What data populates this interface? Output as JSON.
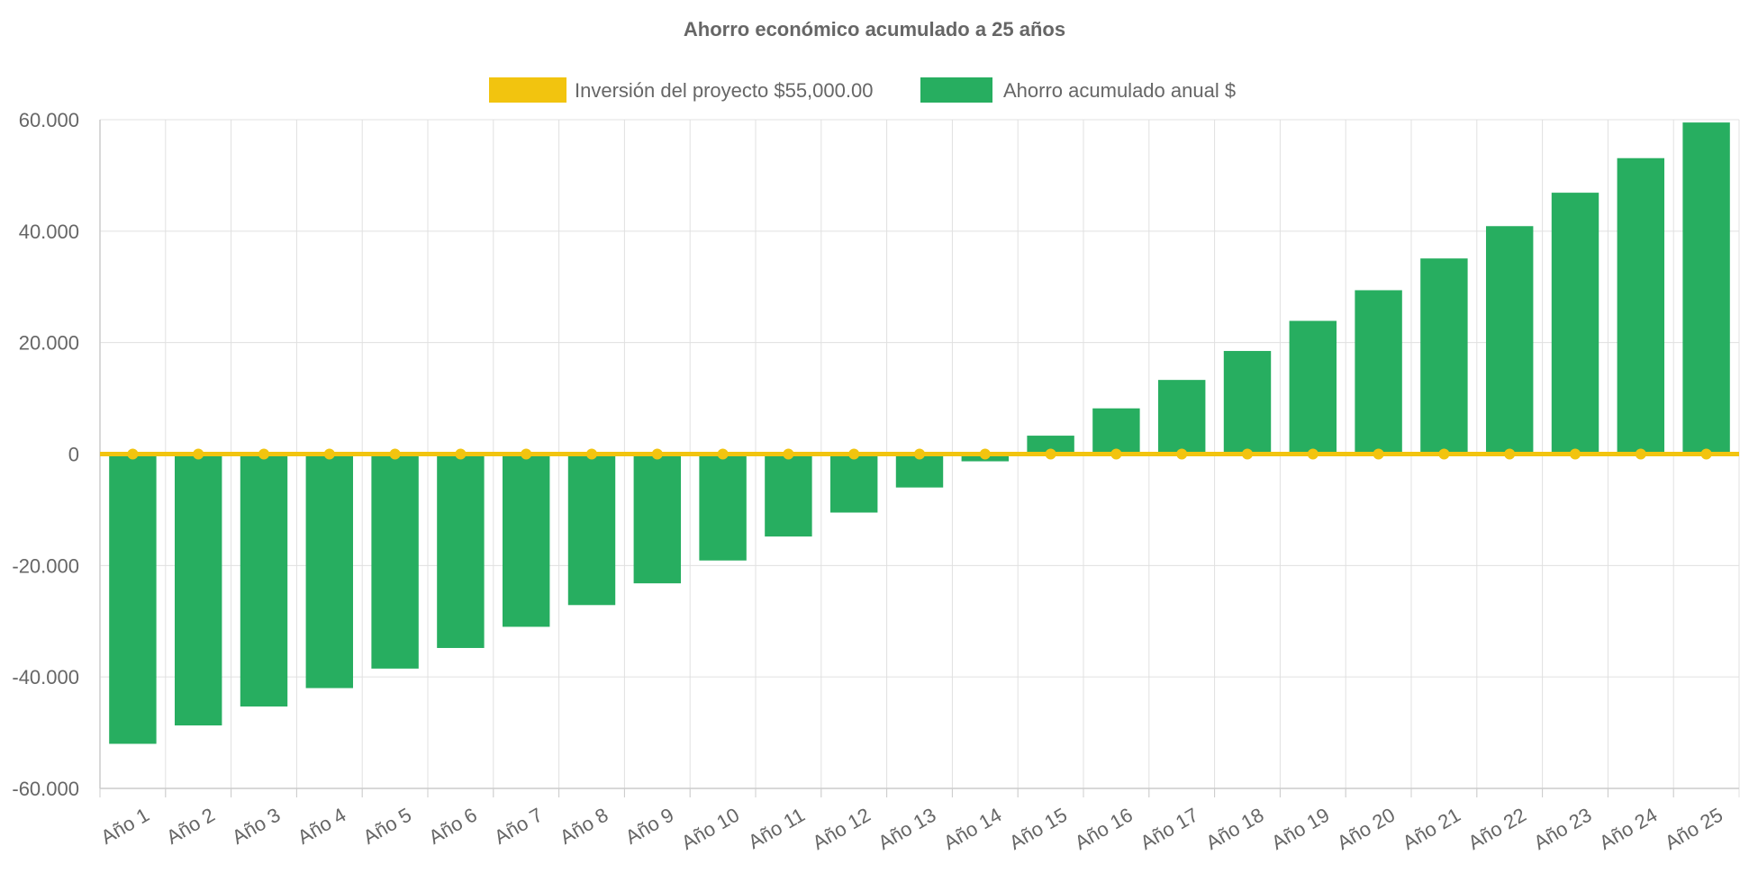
{
  "chart_data": {
    "type": "bar",
    "title": "Ahorro económico acumulado a 25 años",
    "categories": [
      "Año 1",
      "Año 2",
      "Año 3",
      "Año 4",
      "Año 5",
      "Año 6",
      "Año 7",
      "Año 8",
      "Año 9",
      "Año 10",
      "Año 11",
      "Año 12",
      "Año 13",
      "Año 14",
      "Año 15",
      "Año 16",
      "Año 17",
      "Año 18",
      "Año 19",
      "Año 20",
      "Año 21",
      "Año 22",
      "Año 23",
      "Año 24",
      "Año 25"
    ],
    "series": [
      {
        "name": "Inversión del proyecto $55,000.00",
        "type": "line",
        "color": "#f2c40f",
        "values": [
          0,
          0,
          0,
          0,
          0,
          0,
          0,
          0,
          0,
          0,
          0,
          0,
          0,
          0,
          0,
          0,
          0,
          0,
          0,
          0,
          0,
          0,
          0,
          0,
          0
        ]
      },
      {
        "name": "Ahorro acumulado anual $",
        "type": "bar",
        "color": "#27ae60",
        "values": [
          -52000,
          -48700,
          -45300,
          -42000,
          -38500,
          -34800,
          -31000,
          -27100,
          -23200,
          -19100,
          -14800,
          -10500,
          -6000,
          -1300,
          3300,
          8200,
          13300,
          18500,
          23900,
          29400,
          35100,
          40900,
          46900,
          53100,
          59500
        ]
      }
    ],
    "xlabel": "",
    "ylabel": "",
    "ylim": [
      -60000,
      60000
    ],
    "yticks": [
      "60.000",
      "40.000",
      "20.000",
      "0",
      "-20.000",
      "-40.000",
      "-60.000"
    ],
    "ytick_values": [
      60000,
      40000,
      20000,
      0,
      -20000,
      -40000,
      -60000
    ],
    "grid": true,
    "legend_position": "top-center"
  }
}
